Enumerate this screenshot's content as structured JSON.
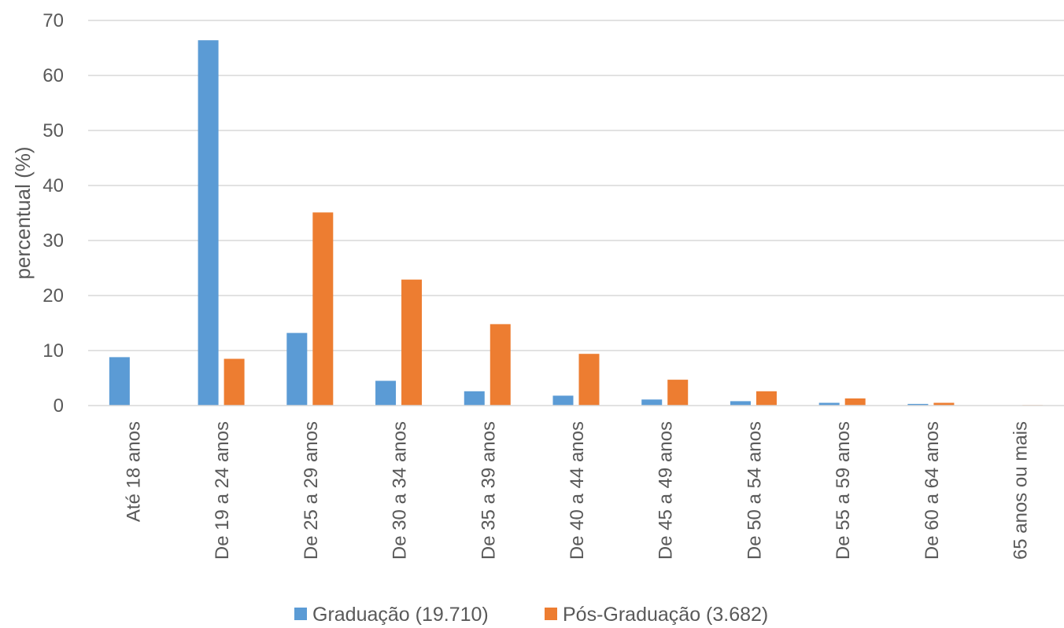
{
  "chart_data": {
    "type": "bar",
    "title": "",
    "xlabel": "",
    "ylabel": "percentual (%)",
    "ylim": [
      0,
      70
    ],
    "yticks": [
      0,
      10,
      20,
      30,
      40,
      50,
      60,
      70
    ],
    "grid": true,
    "legend_position": "bottom",
    "categories": [
      "Até 18 anos",
      "De 19 a 24 anos",
      "De 25 a 29 anos",
      "De 30 a 34 anos",
      "De 35 a 39 anos",
      "De 40 a 44 anos",
      "De 45 a 49 anos",
      "De 50 a 54 anos",
      "De 55 a 59 anos",
      "De 60 a 64 anos",
      "65 anos ou mais"
    ],
    "series": [
      {
        "name": "Graduação (19.710)",
        "color": "#5B9BD5",
        "values": [
          8.8,
          66.4,
          13.2,
          4.5,
          2.6,
          1.8,
          1.1,
          0.8,
          0.5,
          0.3,
          0.05
        ]
      },
      {
        "name": "Pós-Graduação (3.682)",
        "color": "#ED7D31",
        "values": [
          0.0,
          8.5,
          35.1,
          22.9,
          14.8,
          9.4,
          4.7,
          2.6,
          1.3,
          0.5,
          0.1
        ]
      }
    ]
  }
}
